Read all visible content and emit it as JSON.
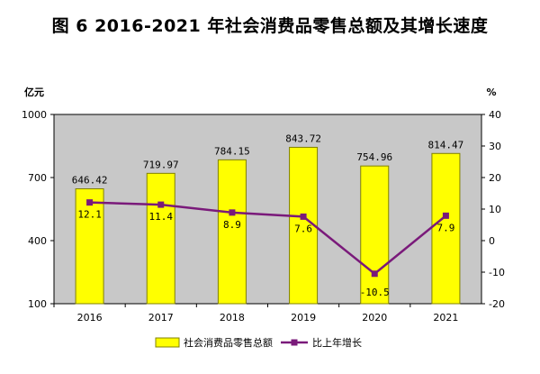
{
  "title": "图 6   2016-2021 年社会消费品零售总额及其增长速度",
  "colors": {
    "plot_bg": "#c8c8c8",
    "bar_fill": "#ffff00",
    "bar_stroke": "#808000",
    "line": "#7a1a7a"
  },
  "chart_data": {
    "type": "bar",
    "categories": [
      "2016",
      "2017",
      "2018",
      "2019",
      "2020",
      "2021"
    ],
    "series": [
      {
        "name": "社会消费品零售总额",
        "type": "bar",
        "axis": "left",
        "values": [
          646.42,
          719.97,
          784.15,
          843.72,
          754.96,
          814.47
        ],
        "labels": [
          "646.42",
          "719.97",
          "784.15",
          "843.72",
          "754.96",
          "814.47"
        ]
      },
      {
        "name": "比上年增长",
        "type": "line",
        "axis": "right",
        "values": [
          12.1,
          11.4,
          8.9,
          7.6,
          -10.5,
          7.9
        ],
        "labels": [
          "12.1",
          "11.4",
          "8.9",
          "7.6",
          "-10.5",
          "7.9"
        ]
      }
    ],
    "y_left": {
      "unit": "亿元",
      "ylim": [
        100,
        1000
      ],
      "ticks": [
        "100",
        "400",
        "700",
        "1000"
      ]
    },
    "y_right": {
      "unit": "%",
      "ylim": [
        -20,
        40
      ],
      "ticks": [
        "-20",
        "-10",
        "0",
        "10",
        "20",
        "30",
        "40"
      ]
    },
    "legend": "bottom"
  }
}
